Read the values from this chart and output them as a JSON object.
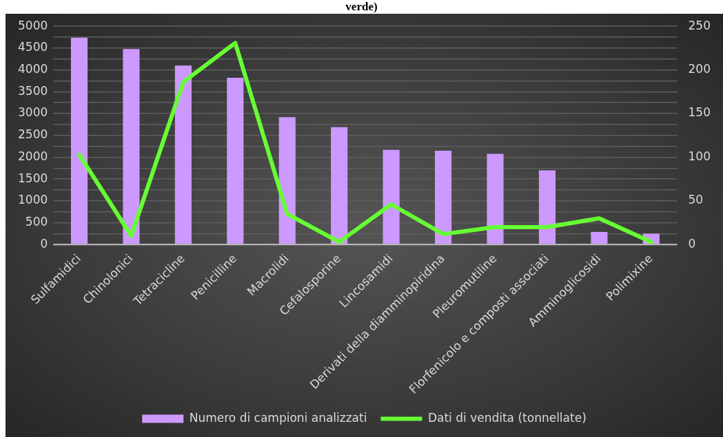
{
  "chart_data": {
    "type": "bar",
    "title": "verde)",
    "categories": [
      "Sulfamidici",
      "Chinolonici",
      "Tetracicline",
      "Penicilline",
      "Macrolidi",
      "Cefalosporine",
      "Lincosamidi",
      "Derivati della diamminopiridina",
      "Pleuromutiline",
      "Florfenicolo e composti associati",
      "Amminoglicosidi",
      "Polimixine"
    ],
    "series": [
      {
        "name": "Numero di campioni analizzati",
        "color": "#cc99ff",
        "values": [
          4740,
          4480,
          4100,
          3820,
          2920,
          2690,
          2170,
          2150,
          2080,
          1700,
          290,
          250
        ]
      },
      {
        "name": "Dati di vendita (tonnellate)",
        "type": "line",
        "axis": "y2",
        "color": "#66ff33",
        "values": [
          103,
          10,
          186,
          231,
          35,
          3,
          46,
          12,
          20,
          20,
          30,
          3
        ]
      }
    ],
    "ylim": [
      0,
      5000
    ],
    "yticks": [
      0,
      {
        "value": 250,
        "label": null
      },
      500,
      {
        "value": 750,
        "label": null
      },
      1000,
      {
        "value": 1250,
        "label": null
      },
      1500,
      {
        "value": 1750,
        "label": null
      },
      2000,
      {
        "value": 2250,
        "label": null
      },
      2500,
      {
        "value": 2750,
        "label": null
      },
      3000,
      {
        "value": 3250,
        "label": null
      },
      3500,
      {
        "value": 3750,
        "label": null
      },
      4000,
      {
        "value": 4250,
        "label": null
      },
      4500,
      {
        "value": 4750,
        "label": null
      },
      5000
    ],
    "y2lim": [
      0,
      250
    ],
    "y2ticks": [
      0,
      50,
      100,
      150,
      200,
      250
    ],
    "grid": "y",
    "legend": "bottom",
    "marker": "none",
    "line_style": "solid"
  }
}
